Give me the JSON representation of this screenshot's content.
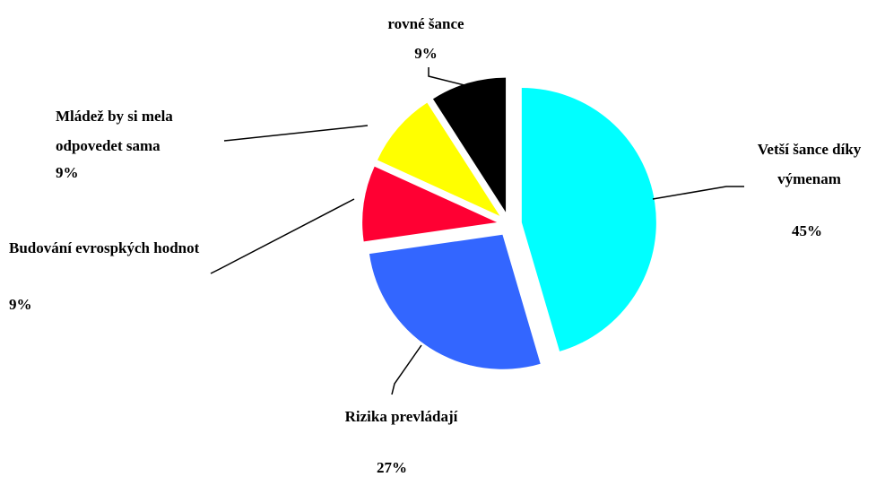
{
  "chart_data": {
    "type": "pie",
    "categories": [
      "Vetší šance díky výmenam",
      "Rizika prevládají",
      "Budování evrospkých hodnot",
      "Mládež by si mela odpovedet sama",
      "rovné šance"
    ],
    "values": [
      45,
      27,
      9,
      9,
      9
    ],
    "value_labels": [
      "45%",
      "27%",
      "9%",
      "9%",
      "9%"
    ],
    "colors": [
      "#00ffff",
      "#3366ff",
      "#ff0033",
      "#ffff00",
      "#000000"
    ]
  }
}
